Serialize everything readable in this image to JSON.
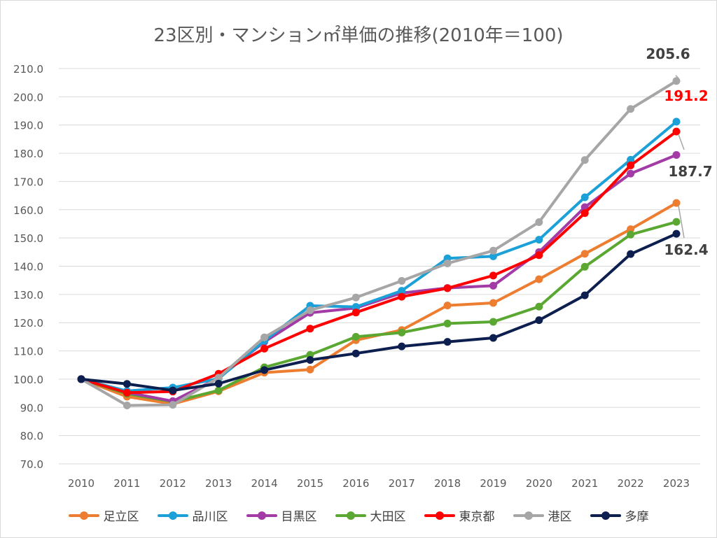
{
  "chart_data": {
    "type": "line",
    "title": "23区別・マンション㎡単価の推移(2010年＝100)",
    "xlabel": "",
    "ylabel": "",
    "ylim": [
      70,
      210
    ],
    "yticks": [
      "70.0",
      "80.0",
      "90.0",
      "100.0",
      "110.0",
      "120.0",
      "130.0",
      "140.0",
      "150.0",
      "160.0",
      "170.0",
      "180.0",
      "190.0",
      "200.0",
      "210.0"
    ],
    "grid": true,
    "legend_position": "bottom",
    "x": [
      "2010",
      "2011",
      "2012",
      "2013",
      "2014",
      "2015",
      "2016",
      "2017",
      "2018",
      "2019",
      "2020",
      "2021",
      "2022",
      "2023"
    ],
    "series": [
      {
        "name": "足立区",
        "color": "#ed7d31",
        "values": [
          100.0,
          93.8,
          91.2,
          95.7,
          102.3,
          103.4,
          113.8,
          117.4,
          126.1,
          127.0,
          135.4,
          144.4,
          153.1,
          162.4
        ]
      },
      {
        "name": "品川区",
        "color": "#1ba1d8",
        "values": [
          100.0,
          95.8,
          97.0,
          100.2,
          113.6,
          126.0,
          125.6,
          131.3,
          142.8,
          143.5,
          149.4,
          164.4,
          177.7,
          191.2
        ]
      },
      {
        "name": "目黒区",
        "color": "#a23ba5",
        "values": [
          100.0,
          95.3,
          92.2,
          100.4,
          113.2,
          123.5,
          125.2,
          130.5,
          132.3,
          133.1,
          145.0,
          160.9,
          172.8,
          179.4
        ]
      },
      {
        "name": "大田区",
        "color": "#5aa832",
        "values": [
          100.0,
          94.8,
          92.0,
          96.0,
          104.2,
          108.6,
          115.0,
          116.5,
          119.7,
          120.3,
          125.7,
          139.8,
          151.2,
          155.7
        ]
      },
      {
        "name": "東京都",
        "color": "#ff0000",
        "values": [
          100.0,
          95.2,
          95.6,
          101.9,
          110.8,
          117.9,
          123.6,
          129.2,
          132.2,
          136.7,
          143.9,
          158.8,
          175.7,
          187.7
        ]
      },
      {
        "name": "港区",
        "color": "#a6a6a6",
        "values": [
          100.0,
          90.7,
          90.9,
          100.5,
          114.8,
          124.4,
          128.9,
          134.8,
          141.0,
          145.5,
          155.6,
          177.6,
          195.7,
          205.6
        ]
      },
      {
        "name": "多摩",
        "color": "#0d1f4f",
        "values": [
          100.0,
          98.3,
          96.0,
          98.4,
          103.2,
          106.8,
          109.1,
          111.6,
          113.2,
          114.6,
          120.9,
          129.7,
          144.3,
          151.5
        ]
      }
    ],
    "annotations": [
      {
        "text": "205.6",
        "color": "#404040",
        "series": "港区"
      },
      {
        "text": "191.2",
        "color": "#ff0000",
        "series": "品川区"
      },
      {
        "text": "187.7",
        "color": "#404040",
        "series": "東京都"
      },
      {
        "text": "162.4",
        "color": "#404040",
        "series": "足立区"
      }
    ]
  }
}
